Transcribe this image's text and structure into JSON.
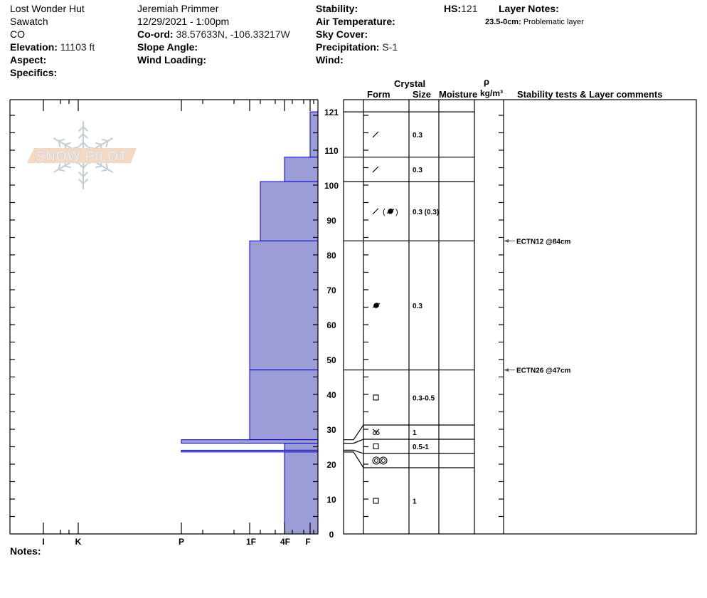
{
  "header": {
    "location": "Lost Wonder Hut",
    "range": "Sawatch",
    "state": "CO",
    "elevation_label": "Elevation:",
    "elevation": "11103 ft",
    "aspect_label": "Aspect:",
    "specifics_label": "Specifics:",
    "observer": "Jeremiah Primmer",
    "datetime": "12/29/2021 - 1:00pm",
    "coord_label": "Co-ord:",
    "coord": "38.57633N, -106.33217W",
    "slope_label": "Slope Angle:",
    "wind_loading_label": "Wind Loading:",
    "stability_label": "Stability:",
    "air_temp_label": "Air Temperature:",
    "sky_label": "Sky Cover:",
    "precip_label": "Precipitation:",
    "precip": "S-1",
    "wind_label": "Wind:",
    "hs_label": "HS:",
    "hs": "121",
    "layer_notes_label": "Layer Notes:",
    "layer_note_range": "23.5-0cm:",
    "layer_note_text": "Problematic layer",
    "notes_label": "Notes:"
  },
  "logo": {
    "text": "SNOW PILOT"
  },
  "columns": {
    "crystal": "Crystal",
    "form": "Form",
    "size": "Size",
    "moisture": "Moisture",
    "rho": "ρ",
    "density": "kg/m³",
    "comments": "Stability tests & Layer comments"
  },
  "chart_data": {
    "type": "bar",
    "xlabel": "",
    "ylabel": "",
    "ylim": [
      0,
      121
    ],
    "y_ticks": [
      "0",
      "10",
      "20",
      "30",
      "40",
      "50",
      "60",
      "70",
      "80",
      "90",
      "100",
      "110",
      "121"
    ],
    "hardness_ticks": [
      "I",
      "K",
      "P",
      "1F",
      "4F",
      "F"
    ],
    "colors": {
      "fill": "#9c9cd6",
      "stroke": "#0000cc"
    },
    "layers": [
      {
        "top": 121,
        "bottom": 108,
        "hardness": "F",
        "form": "decomposing",
        "size": "0.3"
      },
      {
        "top": 108,
        "bottom": 101,
        "hardness": "4F",
        "form": "decomposing",
        "size": "0.3"
      },
      {
        "top": 101,
        "bottom": 84,
        "hardness": "1F+",
        "form": "decomposing-rounded",
        "size": "0.3 (0.3)"
      },
      {
        "top": 84,
        "bottom": 47,
        "hardness": "1F",
        "form": "rounded",
        "size": "0.3"
      },
      {
        "top": 47,
        "bottom": 27,
        "hardness": "1F",
        "form": "faceted",
        "size": "0.3-0.5"
      },
      {
        "top": 27,
        "bottom": 26,
        "hardness": "P",
        "form": "depth-hoar",
        "size": "1"
      },
      {
        "top": 26,
        "bottom": 24,
        "hardness": "4F",
        "form": "faceted",
        "size": "0.5-1"
      },
      {
        "top": 24,
        "bottom": 23.5,
        "hardness": "P",
        "form": "melt-cluster",
        "size": ""
      },
      {
        "top": 23.5,
        "bottom": 0,
        "hardness": "4F",
        "form": "faceted",
        "size": "1"
      }
    ],
    "stability_tests": [
      {
        "depth": 84,
        "label": "ECTN12 @84cm"
      },
      {
        "depth": 47,
        "label": "ECTN26 @47cm"
      }
    ]
  }
}
